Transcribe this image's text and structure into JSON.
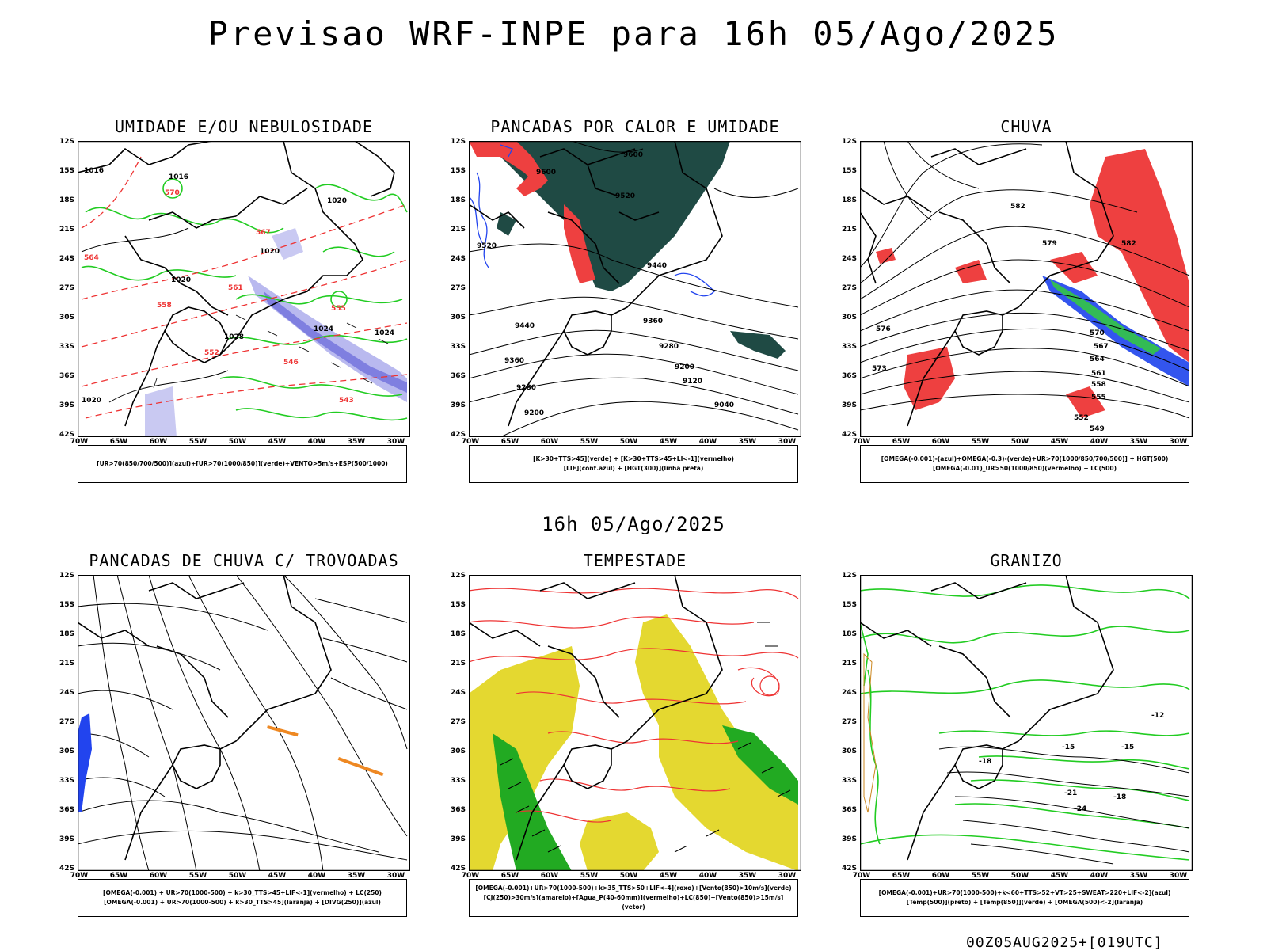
{
  "title": "Previsao WRF-INPE  para 16h 05/Ago/2025",
  "subtitle": "16h 05/Ago/2025",
  "footer": "00Z05AUG2025+[019UTC]",
  "lat_ticks": [
    "12S",
    "15S",
    "18S",
    "21S",
    "24S",
    "27S",
    "30S",
    "33S",
    "36S",
    "39S",
    "42S"
  ],
  "lon_ticks": [
    "70W",
    "65W",
    "60W",
    "55W",
    "50W",
    "45W",
    "40W",
    "35W",
    "30W"
  ],
  "panels": [
    {
      "title": "UMIDADE E/OU NEBULOSIDADE",
      "legend": [
        "[UR>70(850/700/500)](azul)+[UR>70(1000/850)](verde)+VENTO>5m/s+ESP(500/1000)"
      ]
    },
    {
      "title": "PANCADAS POR CALOR E UMIDADE",
      "legend": [
        "[K>30+TTS>45](verde) + [K>30+TTS>45+LI<-1](vermelho)",
        "[LIF](cont.azul) + [HGT(300)](linha preta)"
      ]
    },
    {
      "title": "CHUVA",
      "legend": [
        "[OMEGA(-0.001)-(azul)+OMEGA(-0.3)-(verde)+UR>70(1000/850/700/500)] + HGT(500)",
        "[OMEGA(-0.01)_UR>50(1000/850)(vermelho) + LC(500)"
      ]
    },
    {
      "title": "PANCADAS DE CHUVA C/ TROVOADAS",
      "legend": [
        "[OMEGA(-0.001) + UR>70(1000-500) + k>30_TTS>45+LIF<-1](vermelho) + LC(250)",
        "[OMEGA(-0.001) + UR>70(1000-500) + k>30_TTS>45](laranja) + [DIVG(250)](azul)"
      ]
    },
    {
      "title": "TEMPESTADE",
      "legend": [
        "[OMEGA(-0.001)+UR>70(1000-500)+k>35_TTS>50+LIF<-4](roxo)+[Vento(850)>10m/s](verde)",
        "[CJ(250)>30m/s](amarelo)+[Agua_P(40-60mm)](vermelho)+LC(850)+[Vento(850)>15m/s](vetor)"
      ]
    },
    {
      "title": "GRANIZO",
      "legend": [
        "[OMEGA(-0.001)+UR>70(1000-500)+k<60+TTS>52+VT>25+SWEAT>220+LIF<-2](azul)",
        "[Temp(500)](preto) + [Temp(850)](verde) + [OMEGA(500)<-2](laranja)"
      ]
    }
  ],
  "contour_labels": {
    "p1": [
      "1016",
      "1016",
      "1020",
      "1020",
      "1020",
      "1024",
      "1024",
      "1028",
      "1020",
      "570",
      "567",
      "564",
      "561",
      "558",
      "555",
      "552",
      "546",
      "543"
    ],
    "p2": [
      "9600",
      "9600",
      "9520",
      "9520",
      "9440",
      "9440",
      "9360",
      "9360",
      "9280",
      "9280",
      "9200",
      "9200",
      "9120",
      "9040"
    ],
    "p3": [
      "582",
      "582",
      "579",
      "576",
      "573",
      "570",
      "567",
      "564",
      "561",
      "558",
      "555",
      "552",
      "549"
    ],
    "p6": [
      "-12",
      "-15",
      "-15",
      "-18",
      "-18",
      "-21",
      "-24"
    ]
  }
}
